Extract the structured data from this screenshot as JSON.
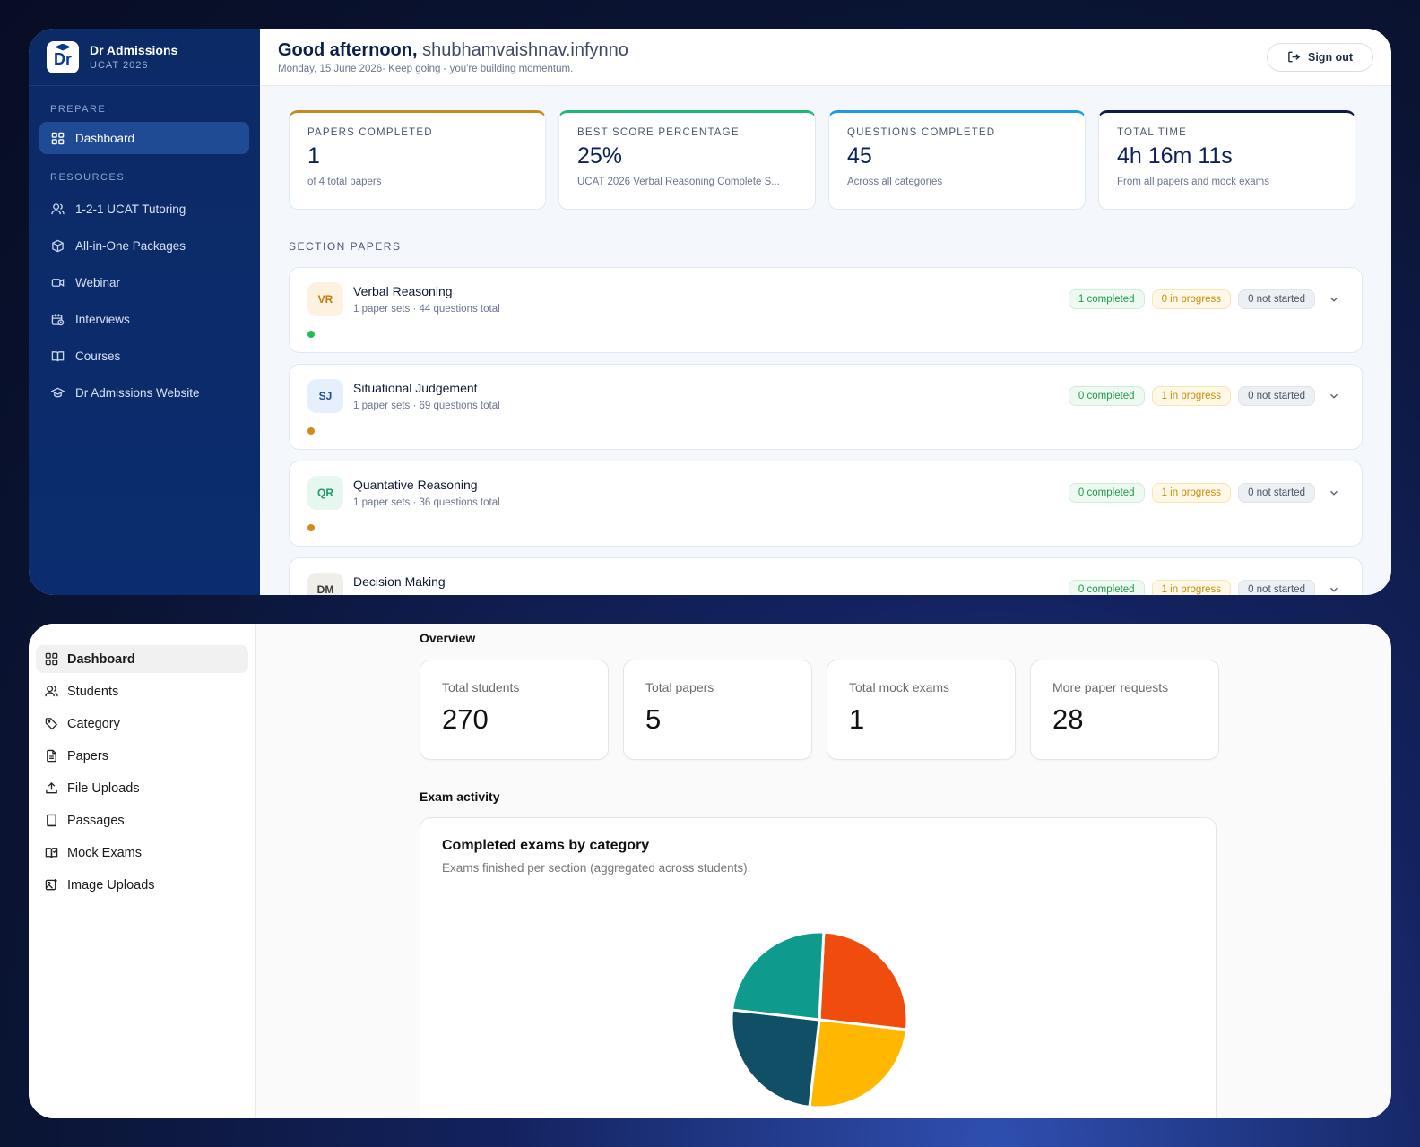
{
  "top": {
    "brand": {
      "name": "Dr Admissions",
      "sub": "UCAT 2026",
      "logo_text": "Dr"
    },
    "sidebar": {
      "section_prepare": "PREPARE",
      "dashboard": "Dashboard",
      "section_resources": "RESOURCES",
      "resources": [
        {
          "label": "1-2-1 UCAT Tutoring",
          "icon": "users-icon"
        },
        {
          "label": "All-in-One Packages",
          "icon": "package-icon"
        },
        {
          "label": "Webinar",
          "icon": "video-icon"
        },
        {
          "label": "Interviews",
          "icon": "calendar-clock-icon"
        },
        {
          "label": "Courses",
          "icon": "book-open-icon"
        },
        {
          "label": "Dr Admissions Website",
          "icon": "graduation-cap-icon"
        }
      ]
    },
    "header": {
      "greeting": "Good afternoon,",
      "username": "shubhamvaishnav.infynno",
      "subtitle": "Monday, 15 June 2026· Keep going - you're building momentum.",
      "signout": "Sign out"
    },
    "stats": [
      {
        "label": "PAPERS COMPLETED",
        "value": "1",
        "sub": "of 4 total papers",
        "color": "#c58a1e"
      },
      {
        "label": "BEST SCORE PERCENTAGE",
        "value": "25%",
        "sub": "UCAT 2026 Verbal Reasoning Complete S...",
        "color": "#1fb873"
      },
      {
        "label": "QUESTIONS COMPLETED",
        "value": "45",
        "sub": "Across all categories",
        "color": "#1e9be0"
      },
      {
        "label": "TOTAL TIME",
        "value": "4h 16m 11s",
        "sub": "From all papers and mock exams",
        "color": "#0e1a4a"
      }
    ],
    "section_papers_title": "SECTION PAPERS",
    "papers": [
      {
        "abbr": "VR",
        "name": "Verbal Reasoning",
        "meta": "1 paper sets · 44 questions total",
        "completed": "1 completed",
        "progress": "0 in progress",
        "not_started": "0 not started",
        "abbr_bg": "#fdf1e0",
        "abbr_color": "#c27c10",
        "dot": "#1fbf5c"
      },
      {
        "abbr": "SJ",
        "name": "Situational Judgement",
        "meta": "1 paper sets · 69 questions total",
        "completed": "0 completed",
        "progress": "1 in progress",
        "not_started": "0 not started",
        "abbr_bg": "#e6effc",
        "abbr_color": "#1b4f9a",
        "dot": "#d18a1c"
      },
      {
        "abbr": "QR",
        "name": "Quantative Reasoning",
        "meta": "1 paper sets · 36 questions total",
        "completed": "0 completed",
        "progress": "1 in progress",
        "not_started": "0 not started",
        "abbr_bg": "#e5f7ee",
        "abbr_color": "#1f9a6a",
        "dot": "#d18a1c"
      },
      {
        "abbr": "DM",
        "name": "Decision Making",
        "meta": "",
        "completed": "0 completed",
        "progress": "1 in progress",
        "not_started": "0 not started",
        "abbr_bg": "#efeee9",
        "abbr_color": "#3a3a3a",
        "dot": "#d18a1c"
      }
    ]
  },
  "bottom": {
    "sidebar": [
      {
        "label": "Dashboard",
        "icon": "dashboard-icon",
        "active": true
      },
      {
        "label": "Students",
        "icon": "users-icon"
      },
      {
        "label": "Category",
        "icon": "tag-icon"
      },
      {
        "label": "Papers",
        "icon": "file-text-icon"
      },
      {
        "label": "File Uploads",
        "icon": "upload-icon"
      },
      {
        "label": "Passages",
        "icon": "book-icon"
      },
      {
        "label": "Mock Exams",
        "icon": "book-open-check-icon"
      },
      {
        "label": "Image Uploads",
        "icon": "image-upload-icon"
      }
    ],
    "overview_title": "Overview",
    "cards": [
      {
        "label": "Total students",
        "value": "270"
      },
      {
        "label": "Total papers",
        "value": "5"
      },
      {
        "label": "Total mock exams",
        "value": "1"
      },
      {
        "label": "More paper requests",
        "value": "28"
      }
    ],
    "exam_activity_title": "Exam activity",
    "chart_title": "Completed exams by category",
    "chart_subtitle": "Exams finished per section (aggregated across students).",
    "chart_data": {
      "type": "pie",
      "categories": [
        "",
        "",
        "",
        ""
      ],
      "values": [
        26,
        25,
        25,
        24
      ],
      "colors": [
        "#f04c0e",
        "#ffb700",
        "#114f66",
        "#0e9a8c"
      ]
    }
  }
}
